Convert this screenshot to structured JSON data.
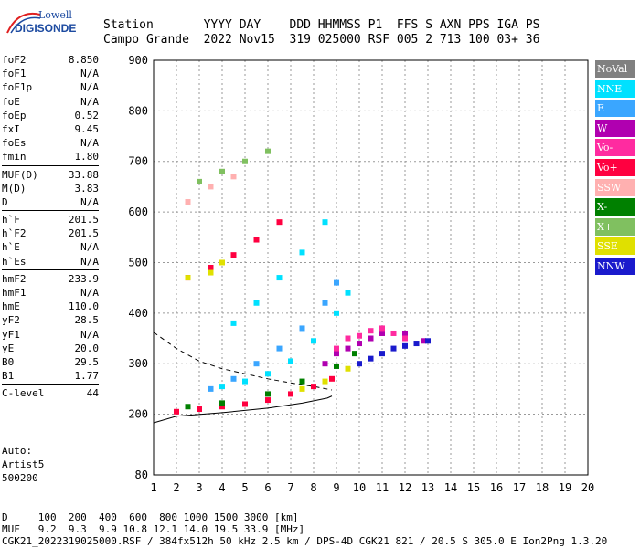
{
  "logo": {
    "line1": "Lowell",
    "line2": "DIGISONDE"
  },
  "header": {
    "row1": "Station       YYYY DAY    DDD HHMMSS P1  FFS S AXN PPS IGA PS",
    "row2": "Campo Grande  2022 Nov15  319 025000 RSF 005 2 713 100 03+ 36"
  },
  "parameters": [
    {
      "group": [
        {
          "name": "foF2",
          "value": "8.850"
        },
        {
          "name": "foF1",
          "value": "N/A"
        },
        {
          "name": "foF1p",
          "value": "N/A"
        },
        {
          "name": "foE",
          "value": "N/A"
        },
        {
          "name": "foEp",
          "value": "0.52"
        },
        {
          "name": "fxI",
          "value": "9.45"
        },
        {
          "name": "foEs",
          "value": "N/A"
        },
        {
          "name": "fmin",
          "value": "1.80"
        }
      ]
    },
    {
      "group": [
        {
          "name": "MUF(D)",
          "value": "33.88"
        },
        {
          "name": "M(D)",
          "value": "3.83"
        },
        {
          "name": "D",
          "value": "N/A"
        }
      ]
    },
    {
      "group": [
        {
          "name": "h`F",
          "value": "201.5"
        },
        {
          "name": "h`F2",
          "value": "201.5"
        },
        {
          "name": "h`E",
          "value": "N/A"
        },
        {
          "name": "h`Es",
          "value": "N/A"
        }
      ]
    },
    {
      "group": [
        {
          "name": "hmF2",
          "value": "233.9"
        },
        {
          "name": "hmF1",
          "value": "N/A"
        },
        {
          "name": "hmE",
          "value": "110.0"
        },
        {
          "name": "yF2",
          "value": "28.5"
        },
        {
          "name": "yF1",
          "value": "N/A"
        },
        {
          "name": "yE",
          "value": "20.0"
        },
        {
          "name": "B0",
          "value": "29.5"
        },
        {
          "name": "B1",
          "value": "1.77"
        }
      ]
    },
    {
      "group": [
        {
          "name": "C-level",
          "value": "44"
        }
      ]
    }
  ],
  "auto": {
    "label": "Auto:",
    "program": "Artist5",
    "version": "500200"
  },
  "legend": [
    {
      "label": "NoVal",
      "color": "#808080"
    },
    {
      "label": "NNE",
      "color": "#00e1ff"
    },
    {
      "label": "E",
      "color": "#3aa6ff"
    },
    {
      "label": "W",
      "color": "#b000b0"
    },
    {
      "label": "Vo-",
      "color": "#ff2ba0"
    },
    {
      "label": "Vo+",
      "color": "#ff0040"
    },
    {
      "label": "SSW",
      "color": "#ffb0b0"
    },
    {
      "label": "X-",
      "color": "#008000"
    },
    {
      "label": "X+",
      "color": "#80c060"
    },
    {
      "label": "SSE",
      "color": "#e0e000"
    },
    {
      "label": "NNW",
      "color": "#1a1acc"
    }
  ],
  "footer": {
    "line1": "D     100  200  400  600  800 1000 1500 3000 [km]",
    "line2": "MUF   9.2  9.3  9.9 10.8 12.1 14.0 19.5 33.9 [MHz]",
    "line3": "CGK21_2022319025000.RSF / 384fx512h 50 kHz 2.5 km / DPS-4D CGK21 821 / 20.5 S 305.0 E Ion2Png 1.3.20"
  },
  "chart_data": {
    "type": "scatter",
    "xlim": [
      1,
      20
    ],
    "ylim": [
      80,
      900
    ],
    "x_ticks": [
      1,
      2,
      3,
      4,
      5,
      6,
      7,
      8,
      9,
      10,
      11,
      12,
      13,
      14,
      15,
      16,
      17,
      18,
      19,
      20
    ],
    "y_ticks": [
      80,
      200,
      300,
      400,
      500,
      600,
      700,
      800,
      900
    ],
    "grid": true,
    "series": [
      {
        "name": "Vo+",
        "color": "#ff0040",
        "points": [
          [
            2,
            205
          ],
          [
            3,
            210
          ],
          [
            4,
            215
          ],
          [
            5,
            220
          ],
          [
            6,
            228
          ],
          [
            7,
            240
          ],
          [
            8,
            255
          ],
          [
            8.8,
            270
          ],
          [
            2.5,
            470
          ],
          [
            3.5,
            490
          ],
          [
            4.5,
            515
          ],
          [
            5.5,
            545
          ],
          [
            6.5,
            580
          ]
        ]
      },
      {
        "name": "NNE",
        "color": "#00e1ff",
        "points": [
          [
            4,
            255
          ],
          [
            5,
            265
          ],
          [
            6,
            280
          ],
          [
            7,
            305
          ],
          [
            8,
            345
          ],
          [
            9,
            400
          ],
          [
            9.5,
            440
          ],
          [
            4.5,
            380
          ],
          [
            5.5,
            420
          ],
          [
            6.5,
            470
          ],
          [
            7.5,
            520
          ],
          [
            8.5,
            580
          ]
        ]
      },
      {
        "name": "E",
        "color": "#3aa6ff",
        "points": [
          [
            3.5,
            250
          ],
          [
            4.5,
            270
          ],
          [
            5.5,
            300
          ],
          [
            6.5,
            330
          ],
          [
            7.5,
            370
          ],
          [
            8.5,
            420
          ],
          [
            9,
            460
          ]
        ]
      },
      {
        "name": "W",
        "color": "#b000b0",
        "points": [
          [
            8.5,
            300
          ],
          [
            9,
            320
          ],
          [
            9.5,
            330
          ],
          [
            10,
            340
          ],
          [
            10.5,
            350
          ],
          [
            11,
            360
          ],
          [
            12,
            360
          ],
          [
            12.8,
            345
          ]
        ]
      },
      {
        "name": "Vo-",
        "color": "#ff2ba0",
        "points": [
          [
            9,
            330
          ],
          [
            9.5,
            350
          ],
          [
            10,
            355
          ],
          [
            10.5,
            365
          ],
          [
            11,
            370
          ],
          [
            11.5,
            360
          ],
          [
            12,
            350
          ]
        ]
      },
      {
        "name": "X-",
        "color": "#008000",
        "points": [
          [
            2.5,
            215
          ],
          [
            4,
            222
          ],
          [
            6,
            240
          ],
          [
            7.5,
            265
          ],
          [
            9,
            295
          ],
          [
            9.8,
            320
          ]
        ]
      },
      {
        "name": "SSE",
        "color": "#e0e000",
        "points": [
          [
            2.5,
            470
          ],
          [
            3.5,
            480
          ],
          [
            4,
            500
          ],
          [
            7.5,
            250
          ],
          [
            8.5,
            265
          ],
          [
            9.5,
            290
          ]
        ]
      },
      {
        "name": "NNW",
        "color": "#1a1acc",
        "points": [
          [
            10,
            300
          ],
          [
            10.5,
            310
          ],
          [
            11,
            320
          ],
          [
            11.5,
            330
          ],
          [
            12,
            335
          ],
          [
            12.5,
            340
          ],
          [
            13,
            345
          ]
        ]
      },
      {
        "name": "X+",
        "color": "#80c060",
        "points": [
          [
            3,
            660
          ],
          [
            4,
            680
          ],
          [
            5,
            700
          ],
          [
            6,
            720
          ]
        ]
      },
      {
        "name": "SSW",
        "color": "#ffb0b0",
        "points": [
          [
            2.5,
            620
          ],
          [
            3.5,
            650
          ],
          [
            4.5,
            670
          ]
        ]
      }
    ]
  }
}
